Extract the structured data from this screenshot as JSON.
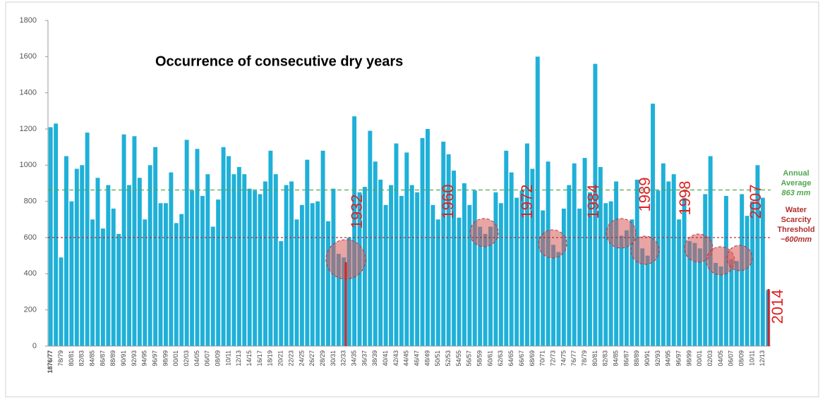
{
  "chart_data": {
    "type": "bar",
    "title": "Occurrence of consecutive dry years",
    "categories": [
      "1876/77",
      null,
      "78/79",
      null,
      "80/81",
      null,
      "82/83",
      null,
      "84/85",
      null,
      "86/87",
      null,
      "88/89",
      null,
      "90/91",
      null,
      "92/93",
      null,
      "94/95",
      null,
      "96/97",
      null,
      "98/99",
      null,
      "00/01",
      null,
      "02/03",
      null,
      "04/05",
      null,
      "06/07",
      null,
      "08/09",
      null,
      "10/11",
      null,
      "12/13",
      null,
      "14/15",
      null,
      "16/17",
      null,
      "18/19",
      null,
      "20/21",
      null,
      "22/23",
      null,
      "24/25",
      null,
      "26/27",
      null,
      "28/29",
      null,
      "30/31",
      null,
      "32/33",
      null,
      "34/35",
      null,
      "36/37",
      null,
      "38/39",
      null,
      "40/41",
      null,
      "42/43",
      null,
      "44/45",
      null,
      "46/47",
      null,
      "48/49",
      null,
      "50/51",
      null,
      "52/53",
      null,
      "54/55",
      null,
      "56/57",
      null,
      "58/59",
      null,
      "60/61",
      null,
      "62/63",
      null,
      "64/65",
      null,
      "66/67",
      null,
      "68/69",
      null,
      "70/71",
      null,
      "72/73",
      null,
      "74/75",
      null,
      "76/77",
      null,
      "78/79",
      null,
      "80/81",
      null,
      "82/83",
      null,
      "84/85",
      null,
      "86/87",
      null,
      "88/89",
      null,
      "90/91",
      null,
      "92/93",
      null,
      "94/95",
      null,
      "96/97",
      null,
      "98/99",
      null,
      "00/01",
      null,
      "02/03",
      null,
      "04/05",
      null,
      "06/07",
      null,
      "08/09",
      null,
      "10/11",
      null,
      "12/13",
      null
    ],
    "values": [
      1210,
      1230,
      490,
      1050,
      800,
      980,
      1000,
      1180,
      700,
      930,
      650,
      890,
      760,
      620,
      1170,
      890,
      1160,
      930,
      700,
      1000,
      1100,
      790,
      790,
      960,
      680,
      730,
      1140,
      860,
      1090,
      830,
      950,
      660,
      810,
      1100,
      1050,
      950,
      990,
      950,
      870,
      860,
      840,
      910,
      1080,
      950,
      580,
      890,
      910,
      700,
      780,
      1030,
      790,
      800,
      1080,
      690,
      870,
      510,
      490,
      600,
      1270,
      850,
      880,
      1190,
      1020,
      920,
      780,
      890,
      1120,
      830,
      1070,
      890,
      850,
      1150,
      1200,
      780,
      700,
      1130,
      1060,
      970,
      710,
      900,
      780,
      860,
      660,
      620,
      660,
      850,
      790,
      1080,
      960,
      820,
      860,
      1120,
      980,
      1600,
      750,
      1020,
      560,
      520,
      760,
      890,
      1010,
      760,
      1040,
      850,
      1560,
      990,
      790,
      800,
      910,
      610,
      640,
      700,
      920,
      540,
      500,
      1340,
      860,
      1010,
      910,
      950,
      700,
      820,
      580,
      570,
      540,
      840,
      1050,
      460,
      440,
      830,
      480,
      470,
      840,
      720,
      800,
      1000,
      820,
      310
    ],
    "color": "#1fb0d8",
    "ylim": [
      0,
      1800
    ],
    "yticks": [
      0,
      200,
      400,
      600,
      800,
      1000,
      1200,
      1400,
      1600,
      1800
    ],
    "grid": false,
    "average_line": {
      "value": 863,
      "labels": [
        "Annual",
        "Average",
        "863 mm"
      ],
      "color": "#4fa84f"
    },
    "threshold_line": {
      "value": 600,
      "labels": [
        "Water",
        "Scarcity",
        "Threshold",
        "~600mm"
      ],
      "color": "#b03030"
    },
    "year_annotations": [
      "1932",
      "1960",
      "1972",
      "1984",
      "1989",
      "1998",
      "2007",
      "2014"
    ]
  }
}
